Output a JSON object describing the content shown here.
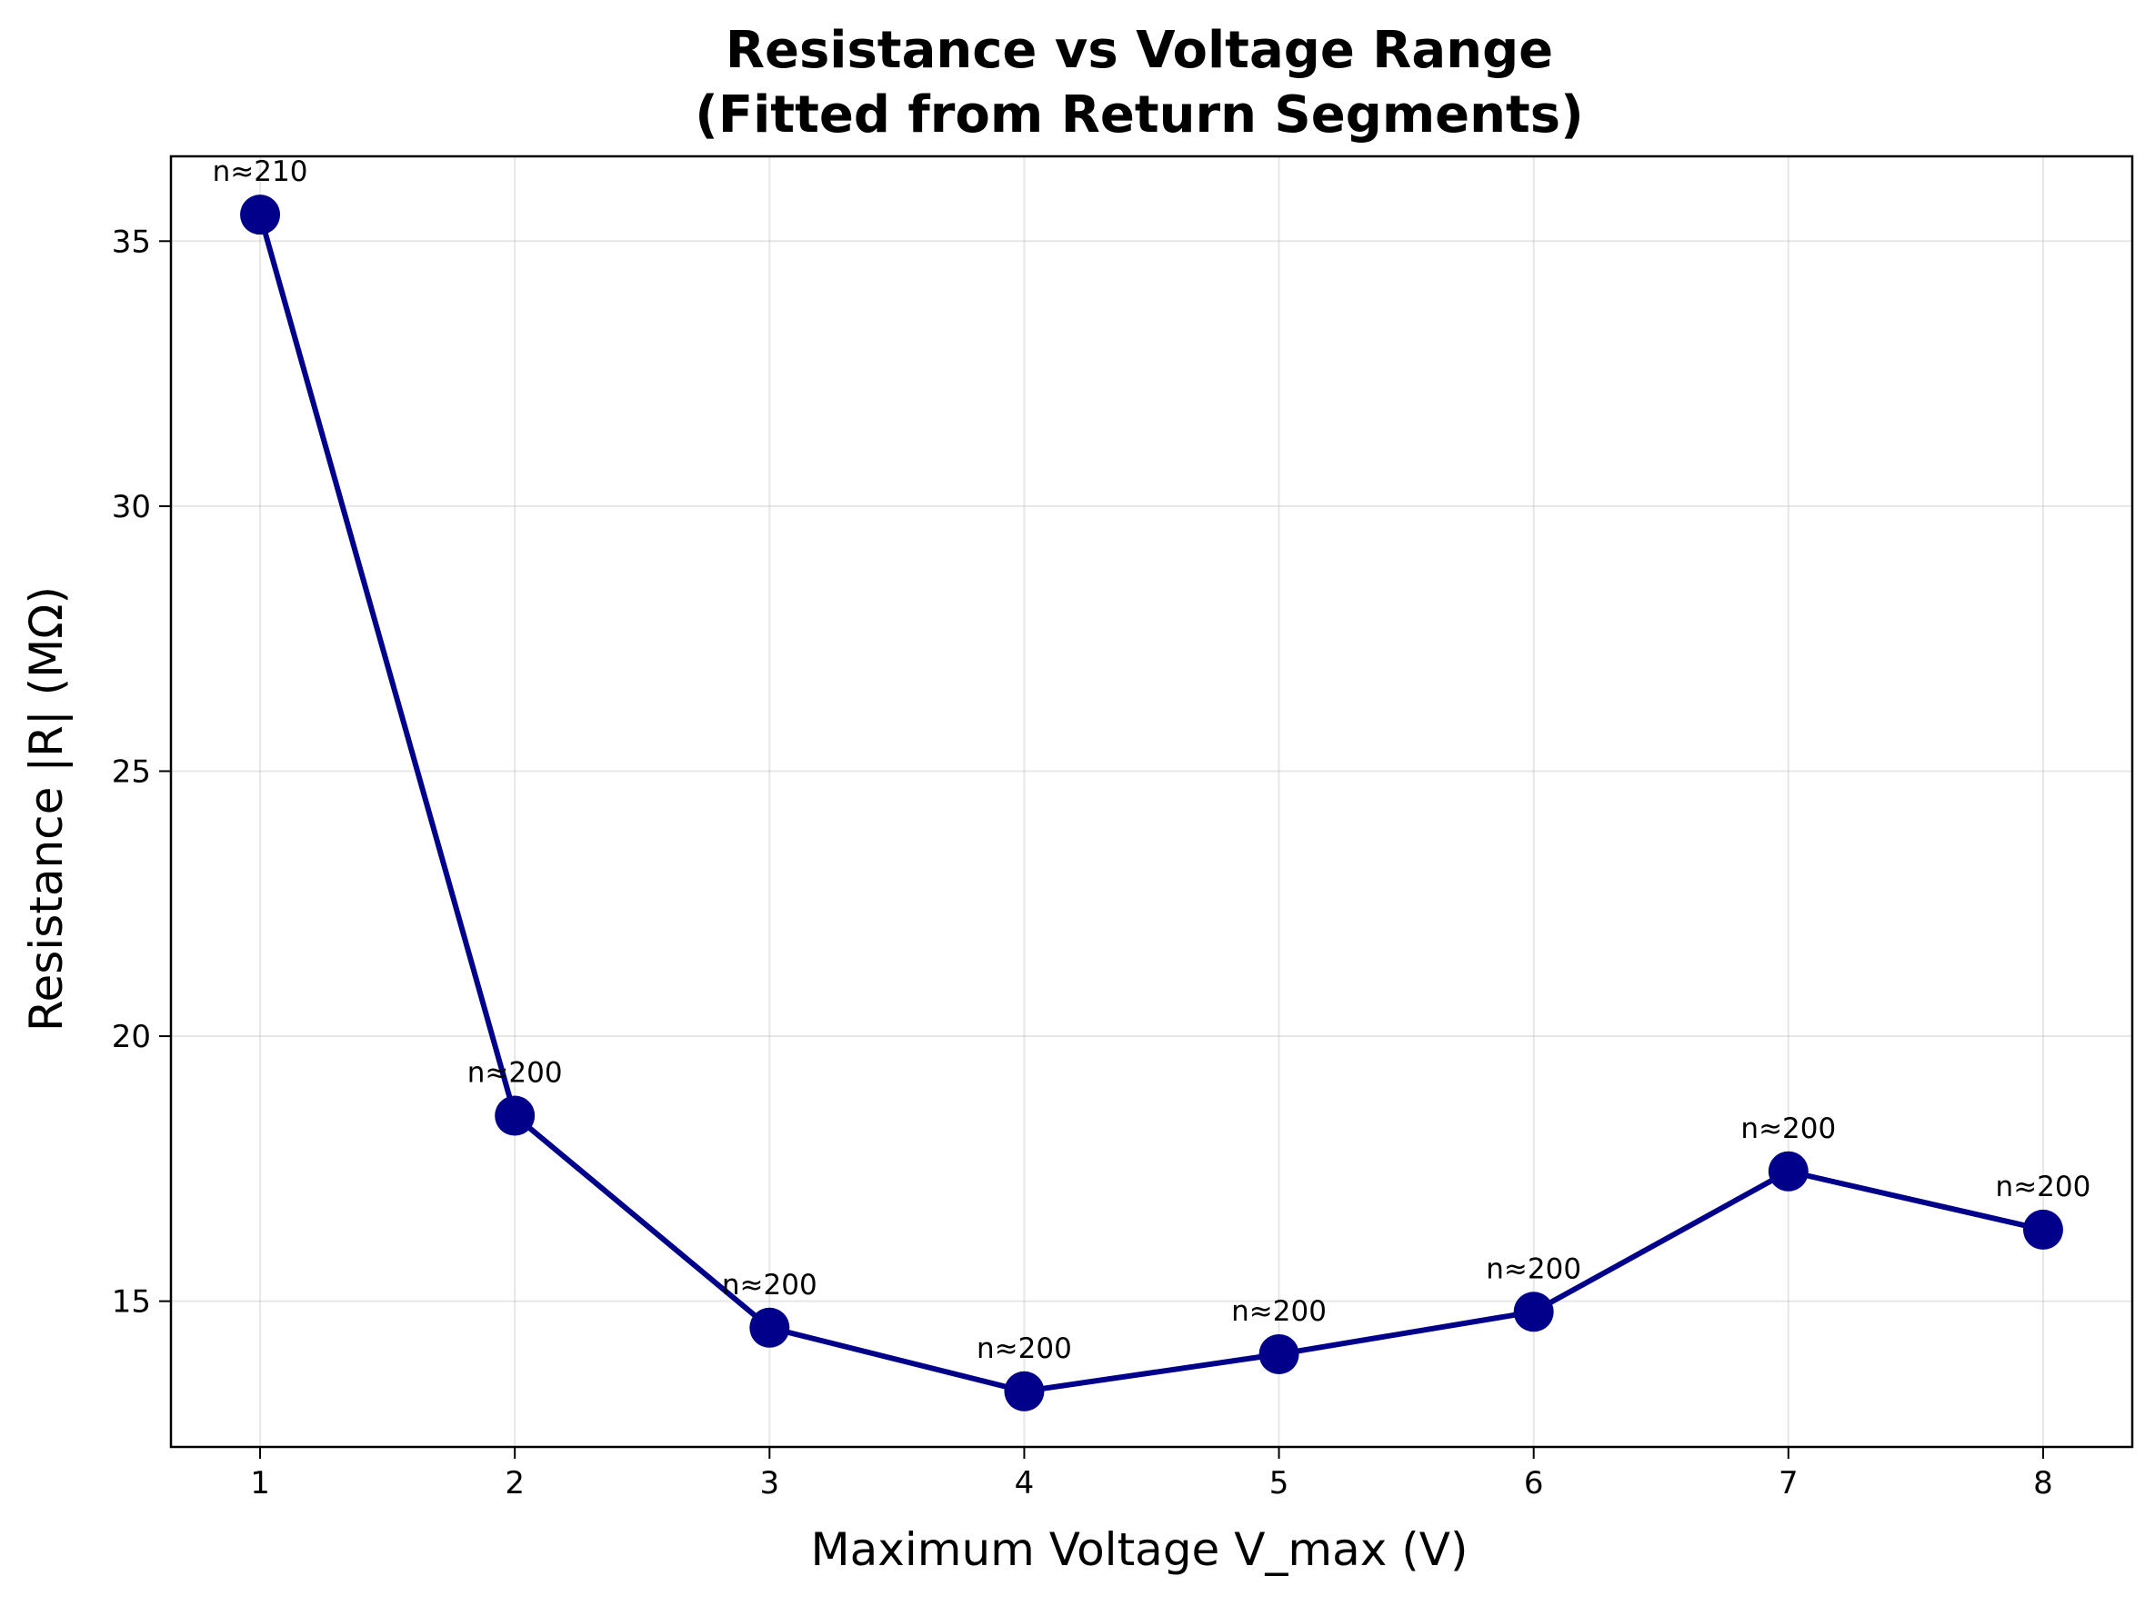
{
  "chart_data": {
    "type": "line",
    "title": "Resistance vs Voltage Range",
    "subtitle": "(Fitted from Return Segments)",
    "xlabel": "Maximum Voltage V_max (V)",
    "ylabel": "Resistance |R| (MΩ)",
    "x": [
      1,
      2,
      3,
      4,
      5,
      6,
      7,
      8
    ],
    "series": [
      {
        "values": [
          35.5,
          18.5,
          14.5,
          13.3,
          14.0,
          14.8,
          17.45,
          16.35
        ],
        "color": "#00008b",
        "marker": "circle"
      }
    ],
    "annotations": [
      "n≈210",
      "n≈200",
      "n≈200",
      "n≈200",
      "n≈200",
      "n≈200",
      "n≈200",
      "n≈200"
    ],
    "xlim": [
      0.65,
      8.35
    ],
    "ylim": [
      12.25,
      36.6
    ],
    "xticks": [
      "1",
      "2",
      "3",
      "4",
      "5",
      "6",
      "7",
      "8"
    ],
    "yticks": [
      "15",
      "20",
      "25",
      "30",
      "35"
    ],
    "grid": true,
    "legend": "none"
  }
}
